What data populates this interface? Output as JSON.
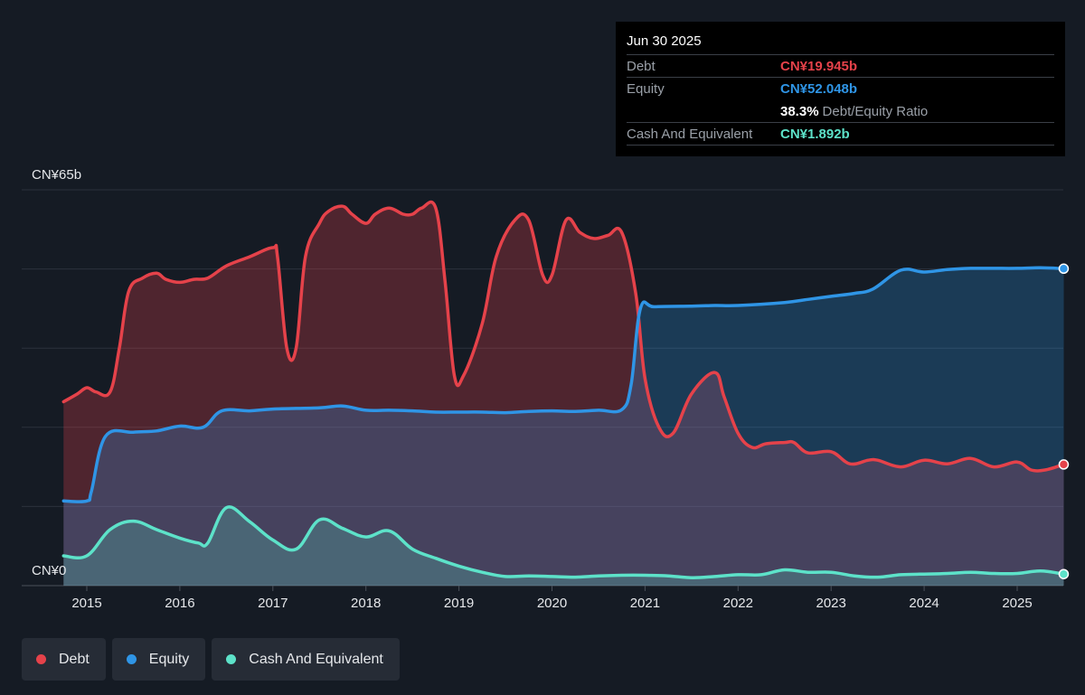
{
  "tooltip": {
    "date": "Jun 30 2025",
    "debt_label": "Debt",
    "debt_value": "CN¥19.945b",
    "equity_label": "Equity",
    "equity_value": "CN¥52.048b",
    "ratio_value": "38.3%",
    "ratio_label": "Debt/Equity Ratio",
    "cash_label": "Cash And Equivalent",
    "cash_value": "CN¥1.892b"
  },
  "legend": [
    {
      "label": "Debt",
      "color": "#e5424a"
    },
    {
      "label": "Equity",
      "color": "#2f95e6"
    },
    {
      "label": "Cash And Equivalent",
      "color": "#5de2c9"
    }
  ],
  "colors": {
    "debt": "#e5424a",
    "equity": "#2f95e6",
    "cash": "#5de2c9",
    "background": "#151b24"
  },
  "chart_data": {
    "type": "area",
    "ylim": [
      0,
      65
    ],
    "y_tick_labels": [
      "CN¥65b",
      "CN¥0"
    ],
    "x_ticks": [
      2015,
      2016,
      2017,
      2018,
      2019,
      2020,
      2021,
      2022,
      2023,
      2024,
      2025
    ],
    "grid": true,
    "legend_position": "bottom-left",
    "series": [
      {
        "name": "Debt",
        "points": [
          [
            2014.75,
            30.2
          ],
          [
            2014.9,
            31.5
          ],
          [
            2015,
            32.5
          ],
          [
            2015.1,
            31.8
          ],
          [
            2015.25,
            31.8
          ],
          [
            2015.35,
            39
          ],
          [
            2015.45,
            48.3
          ],
          [
            2015.6,
            50.5
          ],
          [
            2015.75,
            51.3
          ],
          [
            2015.85,
            50.3
          ],
          [
            2016,
            49.8
          ],
          [
            2016.15,
            50.3
          ],
          [
            2016.3,
            50.5
          ],
          [
            2016.5,
            52.5
          ],
          [
            2016.75,
            54
          ],
          [
            2017,
            55.5
          ],
          [
            2017.05,
            54
          ],
          [
            2017.15,
            39
          ],
          [
            2017.25,
            39
          ],
          [
            2017.35,
            54
          ],
          [
            2017.5,
            59.5
          ],
          [
            2017.6,
            61.5
          ],
          [
            2017.75,
            62.3
          ],
          [
            2017.85,
            61
          ],
          [
            2018,
            59.5
          ],
          [
            2018.1,
            61
          ],
          [
            2018.25,
            62
          ],
          [
            2018.4,
            61
          ],
          [
            2018.5,
            61
          ],
          [
            2018.6,
            62
          ],
          [
            2018.75,
            62
          ],
          [
            2018.85,
            50
          ],
          [
            2018.95,
            34.5
          ],
          [
            2019.05,
            34.5
          ],
          [
            2019.25,
            43
          ],
          [
            2019.4,
            54
          ],
          [
            2019.6,
            60
          ],
          [
            2019.75,
            60
          ],
          [
            2019.9,
            51
          ],
          [
            2020,
            51
          ],
          [
            2020.15,
            60
          ],
          [
            2020.3,
            58
          ],
          [
            2020.45,
            57
          ],
          [
            2020.6,
            57.5
          ],
          [
            2020.75,
            58
          ],
          [
            2020.9,
            48
          ],
          [
            2021,
            34
          ],
          [
            2021.15,
            26
          ],
          [
            2021.3,
            25
          ],
          [
            2021.5,
            31.5
          ],
          [
            2021.75,
            35
          ],
          [
            2021.85,
            31
          ],
          [
            2022,
            25
          ],
          [
            2022.15,
            22.7
          ],
          [
            2022.3,
            23.3
          ],
          [
            2022.5,
            23.5
          ],
          [
            2022.6,
            23.5
          ],
          [
            2022.75,
            21.8
          ],
          [
            2023,
            22
          ],
          [
            2023.2,
            20
          ],
          [
            2023.4,
            20.6
          ],
          [
            2023.5,
            20.6
          ],
          [
            2023.75,
            19.5
          ],
          [
            2024,
            20.6
          ],
          [
            2024.25,
            20
          ],
          [
            2024.5,
            20.9
          ],
          [
            2024.75,
            19.5
          ],
          [
            2025,
            20.3
          ],
          [
            2025.15,
            19
          ],
          [
            2025.3,
            19
          ],
          [
            2025.5,
            19.9
          ]
        ]
      },
      {
        "name": "Equity",
        "points": [
          [
            2014.75,
            13.9
          ],
          [
            2015,
            13.9
          ],
          [
            2015.05,
            15.5
          ],
          [
            2015.2,
            24.5
          ],
          [
            2015.5,
            25.2
          ],
          [
            2015.75,
            25.4
          ],
          [
            2016,
            26.2
          ],
          [
            2016.25,
            26
          ],
          [
            2016.45,
            28.7
          ],
          [
            2016.75,
            28.7
          ],
          [
            2017,
            29
          ],
          [
            2017.5,
            29.2
          ],
          [
            2017.75,
            29.5
          ],
          [
            2018,
            28.8
          ],
          [
            2018.25,
            28.8
          ],
          [
            2018.5,
            28.7
          ],
          [
            2018.75,
            28.5
          ],
          [
            2019,
            28.5
          ],
          [
            2019.25,
            28.5
          ],
          [
            2019.5,
            28.4
          ],
          [
            2019.75,
            28.6
          ],
          [
            2020,
            28.7
          ],
          [
            2020.25,
            28.6
          ],
          [
            2020.5,
            28.8
          ],
          [
            2020.75,
            28.9
          ],
          [
            2020.85,
            33
          ],
          [
            2020.95,
            45.5
          ],
          [
            2021.1,
            45.8
          ],
          [
            2021.5,
            45.9
          ],
          [
            2021.75,
            46
          ],
          [
            2022,
            46
          ],
          [
            2022.5,
            46.5
          ],
          [
            2022.75,
            47
          ],
          [
            2023,
            47.5
          ],
          [
            2023.25,
            48
          ],
          [
            2023.45,
            48.7
          ],
          [
            2023.75,
            51.8
          ],
          [
            2024,
            51.5
          ],
          [
            2024.25,
            51.9
          ],
          [
            2024.5,
            52.1
          ],
          [
            2024.75,
            52.1
          ],
          [
            2025,
            52.1
          ],
          [
            2025.25,
            52.2
          ],
          [
            2025.5,
            52.05
          ]
        ]
      },
      {
        "name": "Cash And Equivalent",
        "points": [
          [
            2014.75,
            4.9
          ],
          [
            2015,
            4.9
          ],
          [
            2015.25,
            9.2
          ],
          [
            2015.5,
            10.6
          ],
          [
            2015.75,
            9.2
          ],
          [
            2016,
            7.8
          ],
          [
            2016.2,
            7
          ],
          [
            2016.3,
            7
          ],
          [
            2016.5,
            12.8
          ],
          [
            2016.75,
            10.5
          ],
          [
            2017,
            7.5
          ],
          [
            2017.25,
            6
          ],
          [
            2017.5,
            10.8
          ],
          [
            2017.75,
            9.4
          ],
          [
            2018,
            8
          ],
          [
            2018.25,
            9
          ],
          [
            2018.5,
            6
          ],
          [
            2018.75,
            4.5
          ],
          [
            2019,
            3.2
          ],
          [
            2019.25,
            2.2
          ],
          [
            2019.5,
            1.5
          ],
          [
            2019.75,
            1.6
          ],
          [
            2020,
            1.5
          ],
          [
            2020.25,
            1.4
          ],
          [
            2020.5,
            1.6
          ],
          [
            2020.75,
            1.7
          ],
          [
            2021,
            1.7
          ],
          [
            2021.25,
            1.6
          ],
          [
            2021.5,
            1.3
          ],
          [
            2021.75,
            1.5
          ],
          [
            2022,
            1.8
          ],
          [
            2022.25,
            1.8
          ],
          [
            2022.5,
            2.6
          ],
          [
            2022.75,
            2.2
          ],
          [
            2023,
            2.2
          ],
          [
            2023.25,
            1.6
          ],
          [
            2023.5,
            1.4
          ],
          [
            2023.75,
            1.8
          ],
          [
            2024,
            1.9
          ],
          [
            2024.25,
            2
          ],
          [
            2024.5,
            2.2
          ],
          [
            2024.75,
            2
          ],
          [
            2025,
            2
          ],
          [
            2025.25,
            2.4
          ],
          [
            2025.5,
            1.9
          ]
        ]
      }
    ]
  }
}
